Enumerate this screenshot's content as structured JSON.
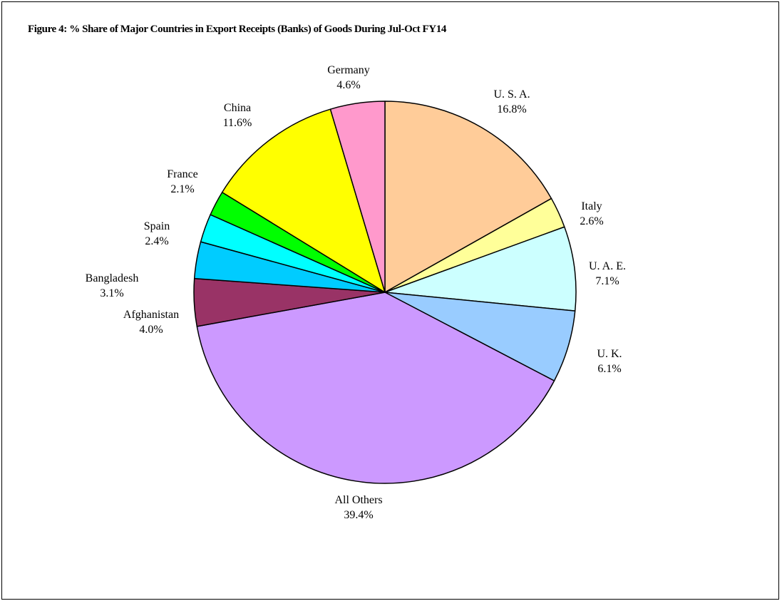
{
  "chart_data": {
    "type": "pie",
    "title": "Figure 4: % Share of Major Countries in Export Receipts  (Banks) of Goods During Jul-Oct FY14",
    "legend": "none",
    "slices": [
      {
        "label": "U. S. A.",
        "value": 16.8,
        "value_label": "16.8%",
        "color": "#ffcc99"
      },
      {
        "label": "Italy",
        "value": 2.6,
        "value_label": "2.6%",
        "color": "#ffff99"
      },
      {
        "label": "U. A. E.",
        "value": 7.1,
        "value_label": "7.1%",
        "color": "#ccffff"
      },
      {
        "label": "U. K.",
        "value": 6.1,
        "value_label": "6.1%",
        "color": "#99ccff"
      },
      {
        "label": "All Others",
        "value": 39.4,
        "value_label": "39.4%",
        "color": "#cc99ff"
      },
      {
        "label": "Afghanistan",
        "value": 4.0,
        "value_label": "4.0%",
        "color": "#993366"
      },
      {
        "label": "Bangladesh",
        "value": 3.1,
        "value_label": "3.1%",
        "color": "#00ccff"
      },
      {
        "label": "Spain",
        "value": 2.4,
        "value_label": "2.4%",
        "color": "#00ffff"
      },
      {
        "label": "France",
        "value": 2.1,
        "value_label": "2.1%",
        "color": "#00ff00"
      },
      {
        "label": "China",
        "value": 11.6,
        "value_label": "11.6%",
        "color": "#ffff00"
      },
      {
        "label": "Germany",
        "value": 4.6,
        "value_label": "4.6%",
        "color": "#ff99cc"
      }
    ]
  }
}
